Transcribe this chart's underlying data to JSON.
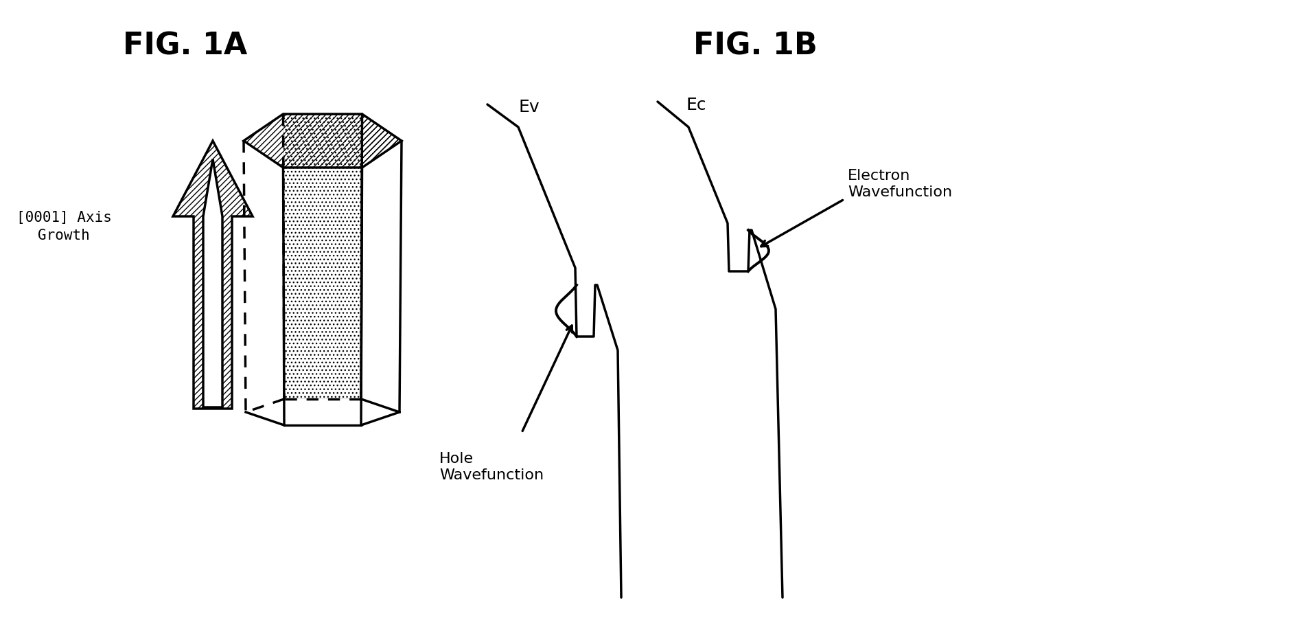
{
  "fig_title_1a": "FIG. 1A",
  "fig_title_1b": "FIG. 1B",
  "label_axis_line1": "[0001] Axis",
  "label_axis_line2": "Growth",
  "label_ev": "Ev",
  "label_ec": "Ec",
  "label_electron_1": "Electron",
  "label_electron_2": "Wavefunction",
  "label_hole_1": "Hole",
  "label_hole_2": "Wavefunction",
  "bg_color": "#ffffff",
  "line_color": "#000000",
  "title_fontsize": 32,
  "label_fontsize": 16,
  "axis_label_fontsize": 15
}
